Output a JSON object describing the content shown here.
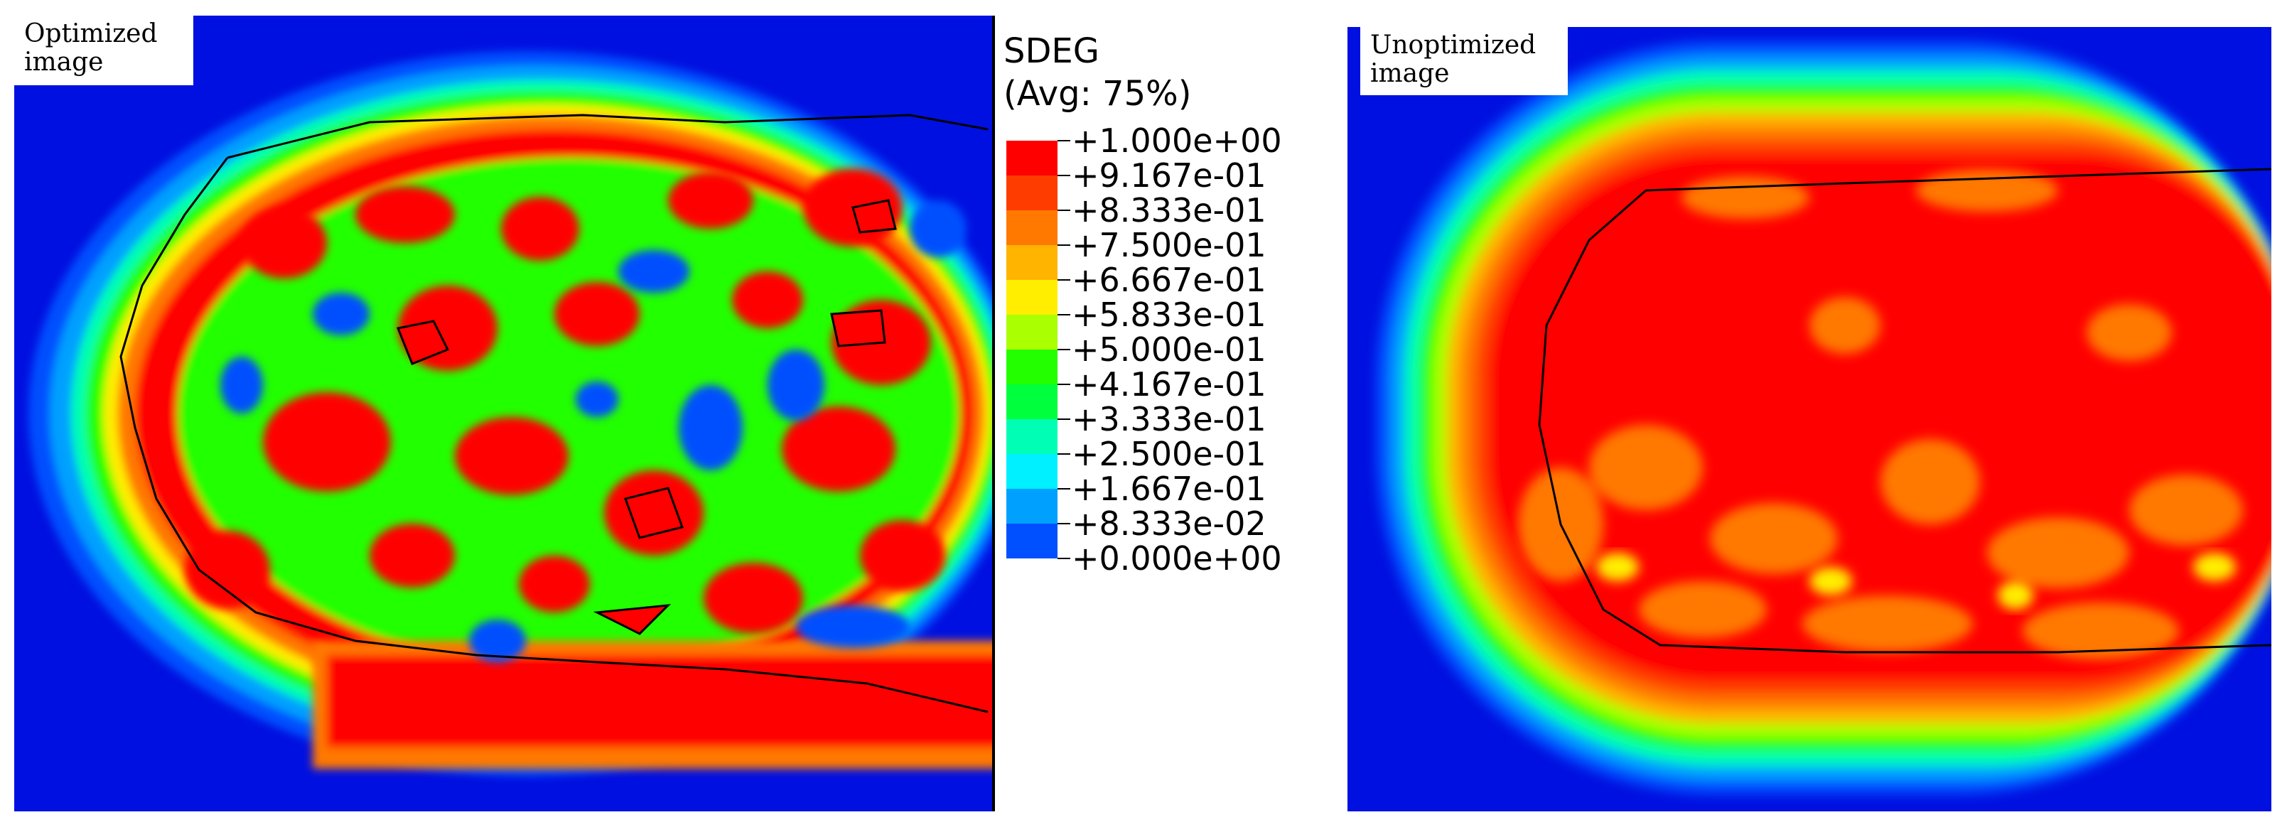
{
  "panels": {
    "left": {
      "label": "Optimized\nimage"
    },
    "right": {
      "label": "Unoptimized\nimage"
    }
  },
  "legend": {
    "variable": "SDEG",
    "averaging": "(Avg: 75%)",
    "levels": [
      {
        "label": "+1.000e+00",
        "color": "#ff0000"
      },
      {
        "label": "+9.167e-01",
        "color": "#ff3c00"
      },
      {
        "label": "+8.333e-01",
        "color": "#ff7800"
      },
      {
        "label": "+7.500e-01",
        "color": "#ffb400"
      },
      {
        "label": "+6.667e-01",
        "color": "#ffee00"
      },
      {
        "label": "+5.833e-01",
        "color": "#aaff00"
      },
      {
        "label": "+5.000e-01",
        "color": "#24ff00"
      },
      {
        "label": "+4.167e-01",
        "color": "#00ff3c"
      },
      {
        "label": "+3.333e-01",
        "color": "#00ffb4"
      },
      {
        "label": "+2.500e-01",
        "color": "#00f0ff"
      },
      {
        "label": "+1.667e-01",
        "color": "#00a0ff"
      },
      {
        "label": "+8.333e-02",
        "color": "#0050ff"
      },
      {
        "label": "+0.000e+00",
        "color": "#0010e0"
      }
    ]
  },
  "colors": {
    "background_field": "#0010e0",
    "damage_full": "#ff0000",
    "crack_outline": "#000000"
  }
}
